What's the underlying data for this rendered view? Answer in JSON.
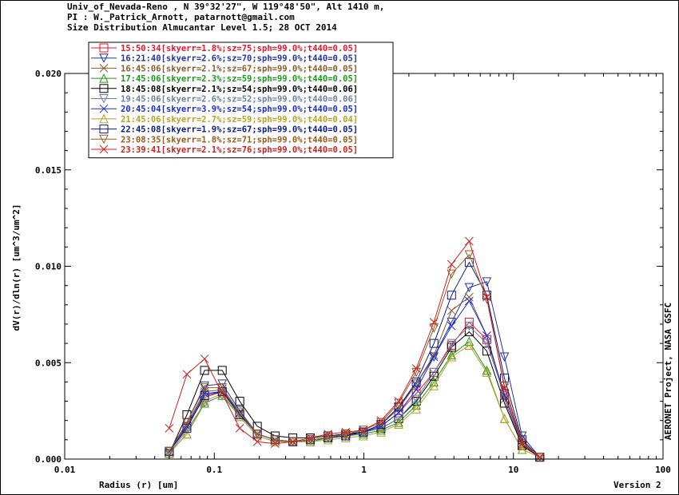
{
  "header": {
    "line1": "Univ_of_Nevada-Reno , N 39°32'27\", W 119°48'50\", Alt 1410 m,",
    "line2": "PI : W._Patrick_Arnott, patarnott@gmail.com",
    "line3": "Size Distribution Almucantar Level 1.5; 28 OCT 2014"
  },
  "side_label": "AERONET Project, NASA GSFC",
  "version_label": "Version 2",
  "colors": {
    "axis": "#000000",
    "background": "#ffffff"
  },
  "chart_data": {
    "type": "line",
    "xscale": "log",
    "xlabel": "Radius (r) [um]",
    "ylabel": "dV(r)/dln(r) [um^3/um^2]",
    "xlim": [
      0.01,
      100
    ],
    "ylim": [
      0,
      0.02
    ],
    "x_ticks": [
      0.01,
      0.1,
      1,
      10,
      100
    ],
    "x_tick_labels": [
      "0.01",
      "0.1",
      "1",
      "10",
      "100"
    ],
    "y_ticks": [
      0,
      0.005,
      0.01,
      0.015,
      0.02
    ],
    "y_tick_labels": [
      "0.000",
      "0.005",
      "0.010",
      "0.015",
      "0.020"
    ],
    "grid": false,
    "legend_position": "top-left",
    "x": [
      0.05,
      0.0656,
      0.0861,
      0.113,
      0.148,
      0.194,
      0.255,
      0.335,
      0.439,
      0.576,
      0.756,
      0.992,
      1.302,
      1.708,
      2.241,
      2.94,
      3.857,
      5.06,
      6.639,
      8.71,
      11.43,
      15.0
    ],
    "series": [
      {
        "name": "15:50:34[skyerr=1.8%;sz=75;sph=99.0%;t440=0.05]",
        "color": "#e8142a",
        "marker": "square",
        "values": [
          0.0004,
          0.0017,
          0.0032,
          0.0035,
          0.0024,
          0.0013,
          0.001,
          0.0009,
          0.001,
          0.0011,
          0.0013,
          0.0014,
          0.0017,
          0.0024,
          0.0034,
          0.0045,
          0.0059,
          0.0071,
          0.0062,
          0.0034,
          0.0008,
          0.0001
        ]
      },
      {
        "name": "16:21:40[skyerr=2.6%;sz=70;sph=99.0%;t440=0.05]",
        "color": "#2233aa",
        "marker": "triangle-down",
        "values": [
          0.0004,
          0.0019,
          0.0038,
          0.0039,
          0.0025,
          0.0013,
          0.001,
          0.0009,
          0.001,
          0.0011,
          0.0012,
          0.0014,
          0.0018,
          0.0027,
          0.0039,
          0.0053,
          0.0071,
          0.0089,
          0.0092,
          0.0053,
          0.0012,
          0.0001
        ]
      },
      {
        "name": "16:45:06[skyerr=2.1%;sz=67;sph=99.0%;t440=0.05]",
        "color": "#8b5a2b",
        "marker": "x",
        "values": [
          0.0004,
          0.0018,
          0.0035,
          0.0036,
          0.0024,
          0.0013,
          0.001,
          0.0009,
          0.001,
          0.0011,
          0.0013,
          0.0014,
          0.0018,
          0.0026,
          0.0039,
          0.0054,
          0.0077,
          0.0084,
          0.0064,
          0.0031,
          0.0007,
          0.0001
        ]
      },
      {
        "name": "17:45:06[skyerr=2.3%;sz=59;sph=99.0%;t440=0.05]",
        "color": "#1a9a1a",
        "marker": "triangle-up",
        "values": [
          0.0003,
          0.0013,
          0.0029,
          0.0033,
          0.0022,
          0.0012,
          0.0009,
          0.0009,
          0.0009,
          0.0011,
          0.0012,
          0.0013,
          0.0015,
          0.0019,
          0.0028,
          0.004,
          0.0054,
          0.0061,
          0.0046,
          0.0021,
          0.0005,
          0.0001
        ]
      },
      {
        "name": "18:45:08[skyerr=2.1%;sz=54;sph=99.0%;t440=0.06]",
        "color": "#000000",
        "marker": "square",
        "values": [
          0.0003,
          0.0023,
          0.0046,
          0.0046,
          0.003,
          0.0017,
          0.0012,
          0.0011,
          0.0011,
          0.0012,
          0.0013,
          0.0014,
          0.0016,
          0.0021,
          0.003,
          0.0043,
          0.0058,
          0.0066,
          0.0056,
          0.0029,
          0.0007,
          0.0001
        ]
      },
      {
        "name": "19:45:06[skyerr=2.6%;sz=52;sph=99.0%;t440=0.06]",
        "color": "#6a7fa8",
        "marker": "triangle-down",
        "values": [
          0.0003,
          0.0015,
          0.0029,
          0.0033,
          0.0023,
          0.0013,
          0.001,
          0.0009,
          0.001,
          0.0011,
          0.0012,
          0.0014,
          0.0016,
          0.0021,
          0.0031,
          0.0045,
          0.006,
          0.0069,
          0.006,
          0.0033,
          0.0009,
          0.0001
        ]
      },
      {
        "name": "20:45:04[skyerr=3.9%;sz=54;sph=99.0%;t440=0.05]",
        "color": "#1a2ecc",
        "marker": "x",
        "values": [
          0.0004,
          0.0017,
          0.0034,
          0.0035,
          0.0024,
          0.0013,
          0.001,
          0.0009,
          0.001,
          0.0011,
          0.0012,
          0.0014,
          0.0017,
          0.0024,
          0.0036,
          0.0053,
          0.0069,
          0.0082,
          0.0064,
          0.0033,
          0.0008,
          0.0001
        ]
      },
      {
        "name": "21:45:06[skyerr=2.7%;sz=59;sph=99.0%;t440=0.04]",
        "color": "#b8a020",
        "marker": "triangle-up",
        "values": [
          0.0003,
          0.0013,
          0.003,
          0.0034,
          0.0022,
          0.0012,
          0.0009,
          0.0009,
          0.0009,
          0.001,
          0.0011,
          0.0012,
          0.0014,
          0.0018,
          0.0026,
          0.0038,
          0.0053,
          0.0059,
          0.0045,
          0.0021,
          0.0005,
          0.0001
        ]
      },
      {
        "name": "22:45:08[skyerr=1.9%;sz=67;sph=99.0%;t440=0.05]",
        "color": "#0a1a8a",
        "marker": "square",
        "values": [
          0.0004,
          0.0016,
          0.0033,
          0.0035,
          0.0023,
          0.0013,
          0.001,
          0.0009,
          0.001,
          0.0011,
          0.0012,
          0.0014,
          0.0018,
          0.0027,
          0.004,
          0.006,
          0.0085,
          0.0102,
          0.0085,
          0.0042,
          0.001,
          0.0001
        ]
      },
      {
        "name": "23:08:35[skyerr=1.8%;sz=71;sph=99.0%;t440=0.05]",
        "color": "#9a5a1a",
        "marker": "triangle-down",
        "values": [
          0.0004,
          0.0019,
          0.0037,
          0.0037,
          0.0024,
          0.0013,
          0.001,
          0.0009,
          0.001,
          0.0011,
          0.0013,
          0.0015,
          0.0019,
          0.0029,
          0.0045,
          0.0068,
          0.0096,
          0.0106,
          0.0083,
          0.0038,
          0.0009,
          0.0001
        ]
      },
      {
        "name": "23:39:41[skyerr=2.1%;sz=76;sph=99.0%;t440=0.05]",
        "color": "#cc2020",
        "marker": "x",
        "values": [
          0.0016,
          0.0044,
          0.0052,
          0.0034,
          0.0016,
          0.0009,
          0.0008,
          0.0009,
          0.0011,
          0.0013,
          0.0014,
          0.0015,
          0.002,
          0.003,
          0.0047,
          0.0071,
          0.0101,
          0.0113,
          0.0084,
          0.0037,
          0.0008,
          0.0001
        ]
      }
    ]
  }
}
